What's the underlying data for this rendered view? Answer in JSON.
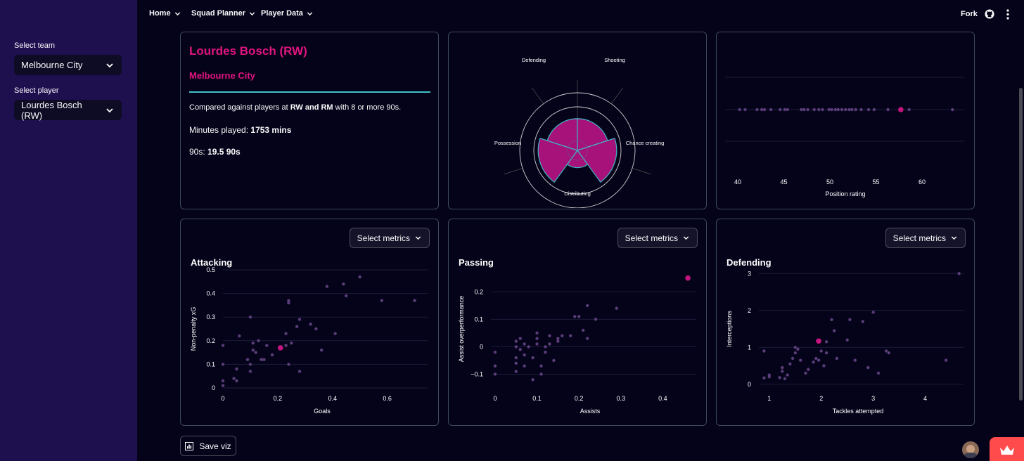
{
  "sidebar": {
    "team_label": "Select team",
    "team_value": "Melbourne City",
    "player_label": "Select player",
    "player_value": "Lourdes Bosch (RW)"
  },
  "nav": {
    "items": [
      "Home",
      "Squad Planner",
      "Player Data"
    ],
    "fork": "Fork"
  },
  "profile": {
    "name": "Lourdes Bosch (RW)",
    "team": "Melbourne City",
    "compare_pre": "Compared against players at ",
    "compare_pos": "RW and RM",
    "compare_post": " with 8 or more 90s.",
    "minutes_label": "Minutes played: ",
    "minutes_value": "1753 mins",
    "nineties_label": "90s: ",
    "nineties_value": "19.5 90s"
  },
  "colors": {
    "highlight": "#c4157f",
    "accent_line": "#3fc2c8",
    "others": "#5a3d78"
  },
  "radar": {
    "labels": [
      "Shooting",
      "Chance creating",
      "Distributing",
      "Possession",
      "Defending"
    ],
    "values": [
      0.55,
      0.68,
      0.3,
      0.68,
      0.55
    ]
  },
  "position_rating": {
    "xlabel": "Position rating",
    "ticks": [
      40,
      45,
      50,
      55,
      60
    ],
    "highlight": 57.7,
    "others": [
      40.2,
      40.8,
      42.1,
      42.6,
      42.9,
      43.6,
      44.6,
      45.1,
      45.4,
      46.9,
      47.2,
      47.6,
      48.3,
      48.8,
      49.2,
      49.9,
      50.2,
      50.6,
      50.9,
      51.3,
      51.7,
      52.1,
      52.4,
      52.8,
      53.4,
      54.2,
      54.8,
      56.3,
      58.6,
      63.3
    ]
  },
  "metrics_button": "Select metrics",
  "save_button": "Save viz",
  "chart_data": [
    {
      "type": "scatter",
      "title": "Attacking",
      "xlabel": "Goals",
      "ylabel": "Non-penalty xG",
      "xlim": [
        0,
        0.75
      ],
      "ylim": [
        0,
        0.5
      ],
      "xticks": [
        "0",
        "0.2",
        "0.4",
        "0.6"
      ],
      "xtick_values": [
        0,
        0.2,
        0.4,
        0.6
      ],
      "yticks": [
        "0",
        "0.1",
        "0.2",
        "0.3",
        "0.4",
        "0.5"
      ],
      "ytick_values": [
        0,
        0.1,
        0.2,
        0.3,
        0.4,
        0.5
      ],
      "highlight": [
        0.21,
        0.17
      ],
      "others": [
        [
          0,
          0.18
        ],
        [
          0,
          0.1
        ],
        [
          0,
          0.03
        ],
        [
          0,
          0.01
        ],
        [
          0.04,
          0.04
        ],
        [
          0.05,
          0.03
        ],
        [
          0.05,
          0.08
        ],
        [
          0.06,
          0.22
        ],
        [
          0.09,
          0.12
        ],
        [
          0.1,
          0.3
        ],
        [
          0.1,
          0.1
        ],
        [
          0.1,
          0.07
        ],
        [
          0.11,
          0.16
        ],
        [
          0.11,
          0.19
        ],
        [
          0.12,
          0.15
        ],
        [
          0.13,
          0.2
        ],
        [
          0.14,
          0.12
        ],
        [
          0.15,
          0.12
        ],
        [
          0.16,
          0.18
        ],
        [
          0.18,
          0.14
        ],
        [
          0.23,
          0.23
        ],
        [
          0.23,
          0.18
        ],
        [
          0.24,
          0.36
        ],
        [
          0.24,
          0.37
        ],
        [
          0.24,
          0.1
        ],
        [
          0.25,
          0.19
        ],
        [
          0.27,
          0.26
        ],
        [
          0.28,
          0.29
        ],
        [
          0.28,
          0.07
        ],
        [
          0.32,
          0.27
        ],
        [
          0.34,
          0.25
        ],
        [
          0.36,
          0.16
        ],
        [
          0.38,
          0.43
        ],
        [
          0.41,
          0.23
        ],
        [
          0.44,
          0.44
        ],
        [
          0.45,
          0.39
        ],
        [
          0.5,
          0.47
        ],
        [
          0.58,
          0.37
        ],
        [
          0.7,
          0.37
        ]
      ]
    },
    {
      "type": "scatter",
      "title": "Passing",
      "xlabel": "Assists",
      "ylabel": "Assist overperformance",
      "xlim": [
        -0.01,
        0.48
      ],
      "ylim": [
        -0.15,
        0.28
      ],
      "xticks": [
        "0",
        "0.1",
        "0.2",
        "0.3",
        "0.4"
      ],
      "xtick_values": [
        0,
        0.1,
        0.2,
        0.3,
        0.4
      ],
      "yticks": [
        "−0.1",
        "0",
        "0.1",
        "0.2"
      ],
      "ytick_values": [
        -0.1,
        0,
        0.1,
        0.2
      ],
      "highlight": [
        0.46,
        0.25
      ],
      "others": [
        [
          0,
          -0.02
        ],
        [
          0,
          -0.07
        ],
        [
          0,
          -0.1
        ],
        [
          0.05,
          0.02
        ],
        [
          0.05,
          0
        ],
        [
          0.05,
          -0.04
        ],
        [
          0.05,
          -0.06
        ],
        [
          0.05,
          -0.09
        ],
        [
          0.06,
          0.03
        ],
        [
          0.06,
          -0.01
        ],
        [
          0.07,
          0.01
        ],
        [
          0.07,
          -0.03
        ],
        [
          0.07,
          -0.07
        ],
        [
          0.08,
          0
        ],
        [
          0.09,
          -0.04
        ],
        [
          0.09,
          -0.12
        ],
        [
          0.1,
          0.01
        ],
        [
          0.1,
          0.03
        ],
        [
          0.1,
          0.05
        ],
        [
          0.11,
          -0.07
        ],
        [
          0.11,
          -0.1
        ],
        [
          0.12,
          0
        ],
        [
          0.12,
          -0.02
        ],
        [
          0.13,
          0.01
        ],
        [
          0.13,
          0.04
        ],
        [
          0.14,
          -0.05
        ],
        [
          0.15,
          0.02
        ],
        [
          0.15,
          0.03
        ],
        [
          0.16,
          0.04
        ],
        [
          0.18,
          0.04
        ],
        [
          0.19,
          0.11
        ],
        [
          0.2,
          0.11
        ],
        [
          0.21,
          0.06
        ],
        [
          0.22,
          0.15
        ],
        [
          0.22,
          0.03
        ],
        [
          0.24,
          0.1
        ],
        [
          0.29,
          0.14
        ]
      ]
    },
    {
      "type": "scatter",
      "title": "Defending",
      "xlabel": "Tackles attempted",
      "ylabel": "Interceptions",
      "xlim": [
        0.8,
        4.75
      ],
      "ylim": [
        -0.1,
        3.1
      ],
      "xticks": [
        "1",
        "2",
        "3",
        "4"
      ],
      "xtick_values": [
        1,
        2,
        3,
        4
      ],
      "yticks": [
        "0",
        "1",
        "2",
        "3"
      ],
      "ytick_values": [
        0,
        1,
        2,
        3
      ],
      "highlight": [
        1.95,
        1.17
      ],
      "others": [
        [
          0.9,
          0.17
        ],
        [
          0.9,
          0.9
        ],
        [
          1,
          0.25
        ],
        [
          1,
          0.2
        ],
        [
          1.2,
          0.18
        ],
        [
          1.25,
          0.35
        ],
        [
          1.25,
          0.45
        ],
        [
          1.3,
          0.15
        ],
        [
          1.35,
          0.25
        ],
        [
          1.4,
          0.55
        ],
        [
          1.45,
          0.7
        ],
        [
          1.5,
          0.85
        ],
        [
          1.5,
          1
        ],
        [
          1.55,
          0.95
        ],
        [
          1.6,
          0.65
        ],
        [
          1.7,
          0.3
        ],
        [
          1.75,
          0.4
        ],
        [
          1.85,
          0.6
        ],
        [
          1.9,
          0.7
        ],
        [
          1.95,
          0.65
        ],
        [
          2,
          0.9
        ],
        [
          2.05,
          0.5
        ],
        [
          2.1,
          0.85
        ],
        [
          2.1,
          1.15
        ],
        [
          2.2,
          1.75
        ],
        [
          2.25,
          1.45
        ],
        [
          2.3,
          0.7
        ],
        [
          2.5,
          1.2
        ],
        [
          2.55,
          1.75
        ],
        [
          2.65,
          0.65
        ],
        [
          2.8,
          1.7
        ],
        [
          2.9,
          0.45
        ],
        [
          3,
          1.95
        ],
        [
          3.1,
          0.3
        ],
        [
          3.25,
          0.9
        ],
        [
          3.3,
          0.85
        ],
        [
          4.4,
          0.65
        ],
        [
          4.65,
          3
        ]
      ]
    }
  ]
}
